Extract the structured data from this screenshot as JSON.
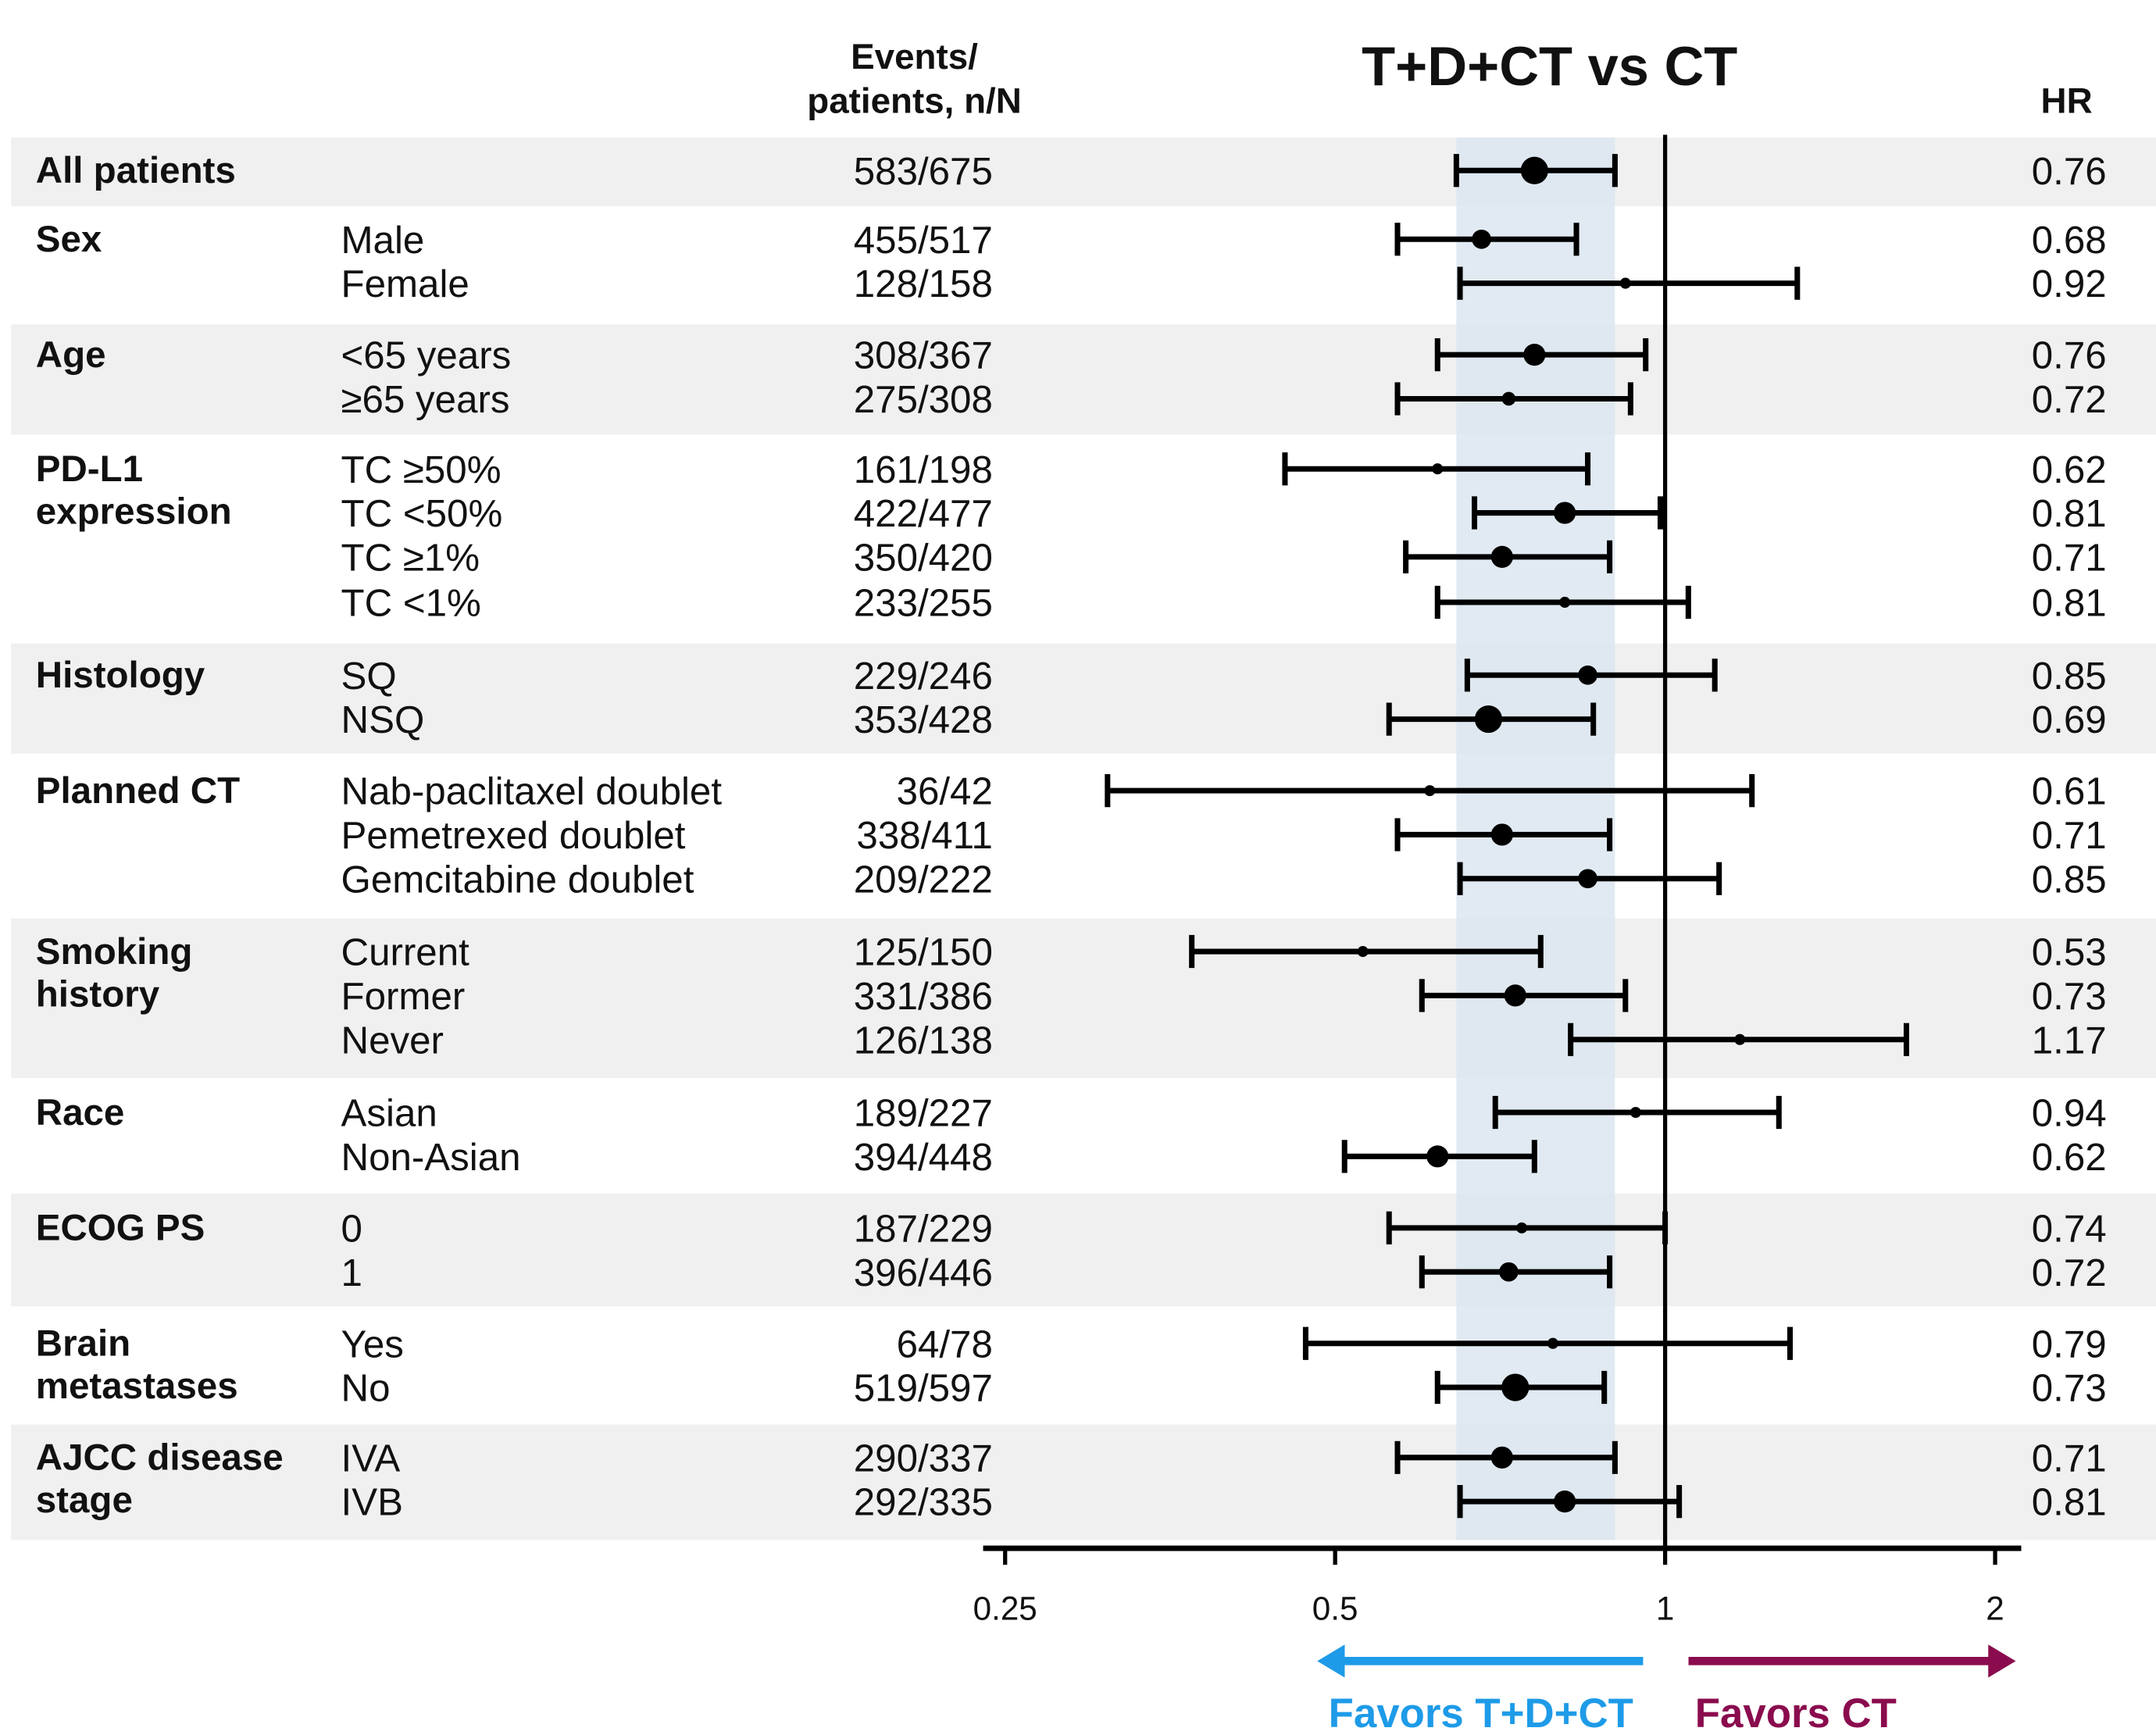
{
  "chart_data": {
    "type": "forest",
    "title": "T+D+CT vs CT",
    "column_headers": {
      "events": [
        "Events/",
        "patients, n/N"
      ],
      "hr": "HR"
    },
    "x_scale": "log2",
    "xlim": [
      0.25,
      2.2
    ],
    "x_ticks": [
      "0.25",
      "0.5",
      "1",
      "2"
    ],
    "reference_line": 1,
    "shaded_band": [
      0.645,
      0.9
    ],
    "favors_left": {
      "label": "Favors T+D+CT",
      "color": "#1e9be8"
    },
    "favors_right": {
      "label": "Favors CT",
      "color": "#8a0c4e"
    },
    "band_color": "#f0f0f0",
    "shade_color": "#dce6f0",
    "groups": [
      {
        "label": "All patients",
        "rows": [
          {
            "subgroup": "",
            "events": "583/675",
            "hr": 0.76,
            "hr_text": "0.76",
            "ci": [
              0.645,
              0.9
            ]
          }
        ]
      },
      {
        "label": "Sex",
        "rows": [
          {
            "subgroup": "Male",
            "events": "455/517",
            "hr": 0.68,
            "hr_text": "0.68",
            "ci": [
              0.57,
              0.83
            ]
          },
          {
            "subgroup": "Female",
            "events": "128/158",
            "hr": 0.92,
            "hr_text": "0.92",
            "ci": [
              0.65,
              1.32
            ]
          }
        ]
      },
      {
        "label": "Age",
        "rows": [
          {
            "subgroup": "<65 years",
            "events": "308/367",
            "hr": 0.76,
            "hr_text": "0.76",
            "ci": [
              0.62,
              0.96
            ]
          },
          {
            "subgroup": "≥65 years",
            "events": "275/308",
            "hr": 0.72,
            "hr_text": "0.72",
            "ci": [
              0.57,
              0.93
            ]
          }
        ]
      },
      {
        "label": "PD-L1 expression",
        "label_lines": [
          "PD-L1",
          "expression"
        ],
        "rows": [
          {
            "subgroup": "TC ≥50%",
            "events": "161/198",
            "hr": 0.62,
            "hr_text": "0.62",
            "ci": [
              0.45,
              0.85
            ]
          },
          {
            "subgroup": "TC <50%",
            "events": "422/477",
            "hr": 0.81,
            "hr_text": "0.81",
            "ci": [
              0.67,
              0.99
            ]
          },
          {
            "subgroup": "TC ≥1%",
            "events": "350/420",
            "hr": 0.71,
            "hr_text": "0.71",
            "ci": [
              0.58,
              0.89
            ]
          },
          {
            "subgroup": "TC <1%",
            "events": "233/255",
            "hr": 0.81,
            "hr_text": "0.81",
            "ci": [
              0.62,
              1.05
            ]
          }
        ]
      },
      {
        "label": "Histology",
        "rows": [
          {
            "subgroup": "SQ",
            "events": "229/246",
            "hr": 0.85,
            "hr_text": "0.85",
            "ci": [
              0.66,
              1.11
            ]
          },
          {
            "subgroup": "NSQ",
            "events": "353/428",
            "hr": 0.69,
            "hr_text": "0.69",
            "ci": [
              0.56,
              0.86
            ]
          }
        ]
      },
      {
        "label": "Planned CT",
        "rows": [
          {
            "subgroup": "Nab-paclitaxel doublet",
            "events": "36/42",
            "hr": 0.61,
            "hr_text": "0.61",
            "ci": [
              0.31,
              1.2
            ]
          },
          {
            "subgroup": "Pemetrexed doublet",
            "events": "338/411",
            "hr": 0.71,
            "hr_text": "0.71",
            "ci": [
              0.57,
              0.89
            ]
          },
          {
            "subgroup": "Gemcitabine doublet",
            "events": "209/222",
            "hr": 0.85,
            "hr_text": "0.85",
            "ci": [
              0.65,
              1.12
            ]
          }
        ]
      },
      {
        "label": "Smoking history",
        "label_lines": [
          "Smoking",
          "history"
        ],
        "rows": [
          {
            "subgroup": "Current",
            "events": "125/150",
            "hr": 0.53,
            "hr_text": "0.53",
            "ci": [
              0.37,
              0.77
            ]
          },
          {
            "subgroup": "Former",
            "events": "331/386",
            "hr": 0.73,
            "hr_text": "0.73",
            "ci": [
              0.6,
              0.92
            ]
          },
          {
            "subgroup": "Never",
            "events": "126/138",
            "hr": 1.17,
            "hr_text": "1.17",
            "ci": [
              0.82,
              1.66
            ]
          }
        ]
      },
      {
        "label": "Race",
        "rows": [
          {
            "subgroup": "Asian",
            "events": "189/227",
            "hr": 0.94,
            "hr_text": "0.94",
            "ci": [
              0.7,
              1.27
            ]
          },
          {
            "subgroup": "Non-Asian",
            "events": "394/448",
            "hr": 0.62,
            "hr_text": "0.62",
            "ci": [
              0.51,
              0.76
            ]
          }
        ]
      },
      {
        "label": "ECOG PS",
        "rows": [
          {
            "subgroup": "0",
            "events": "187/229",
            "hr": 0.74,
            "hr_text": "0.74",
            "ci": [
              0.56,
              1.0
            ]
          },
          {
            "subgroup": "1",
            "events": "396/446",
            "hr": 0.72,
            "hr_text": "0.72",
            "ci": [
              0.6,
              0.89
            ]
          }
        ]
      },
      {
        "label": "Brain metastases",
        "label_lines": [
          "Brain",
          "metastases"
        ],
        "rows": [
          {
            "subgroup": "Yes",
            "events": "64/78",
            "hr": 0.79,
            "hr_text": "0.79",
            "ci": [
              0.47,
              1.3
            ]
          },
          {
            "subgroup": "No",
            "events": "519/597",
            "hr": 0.73,
            "hr_text": "0.73",
            "ci": [
              0.62,
              0.88
            ]
          }
        ]
      },
      {
        "label": "AJCC disease stage",
        "label_lines": [
          "AJCC disease",
          "stage"
        ],
        "rows": [
          {
            "subgroup": "IVA",
            "events": "290/337",
            "hr": 0.71,
            "hr_text": "0.71",
            "ci": [
              0.57,
              0.9
            ]
          },
          {
            "subgroup": "IVB",
            "events": "292/335",
            "hr": 0.81,
            "hr_text": "0.81",
            "ci": [
              0.65,
              1.03
            ]
          }
        ]
      }
    ]
  }
}
